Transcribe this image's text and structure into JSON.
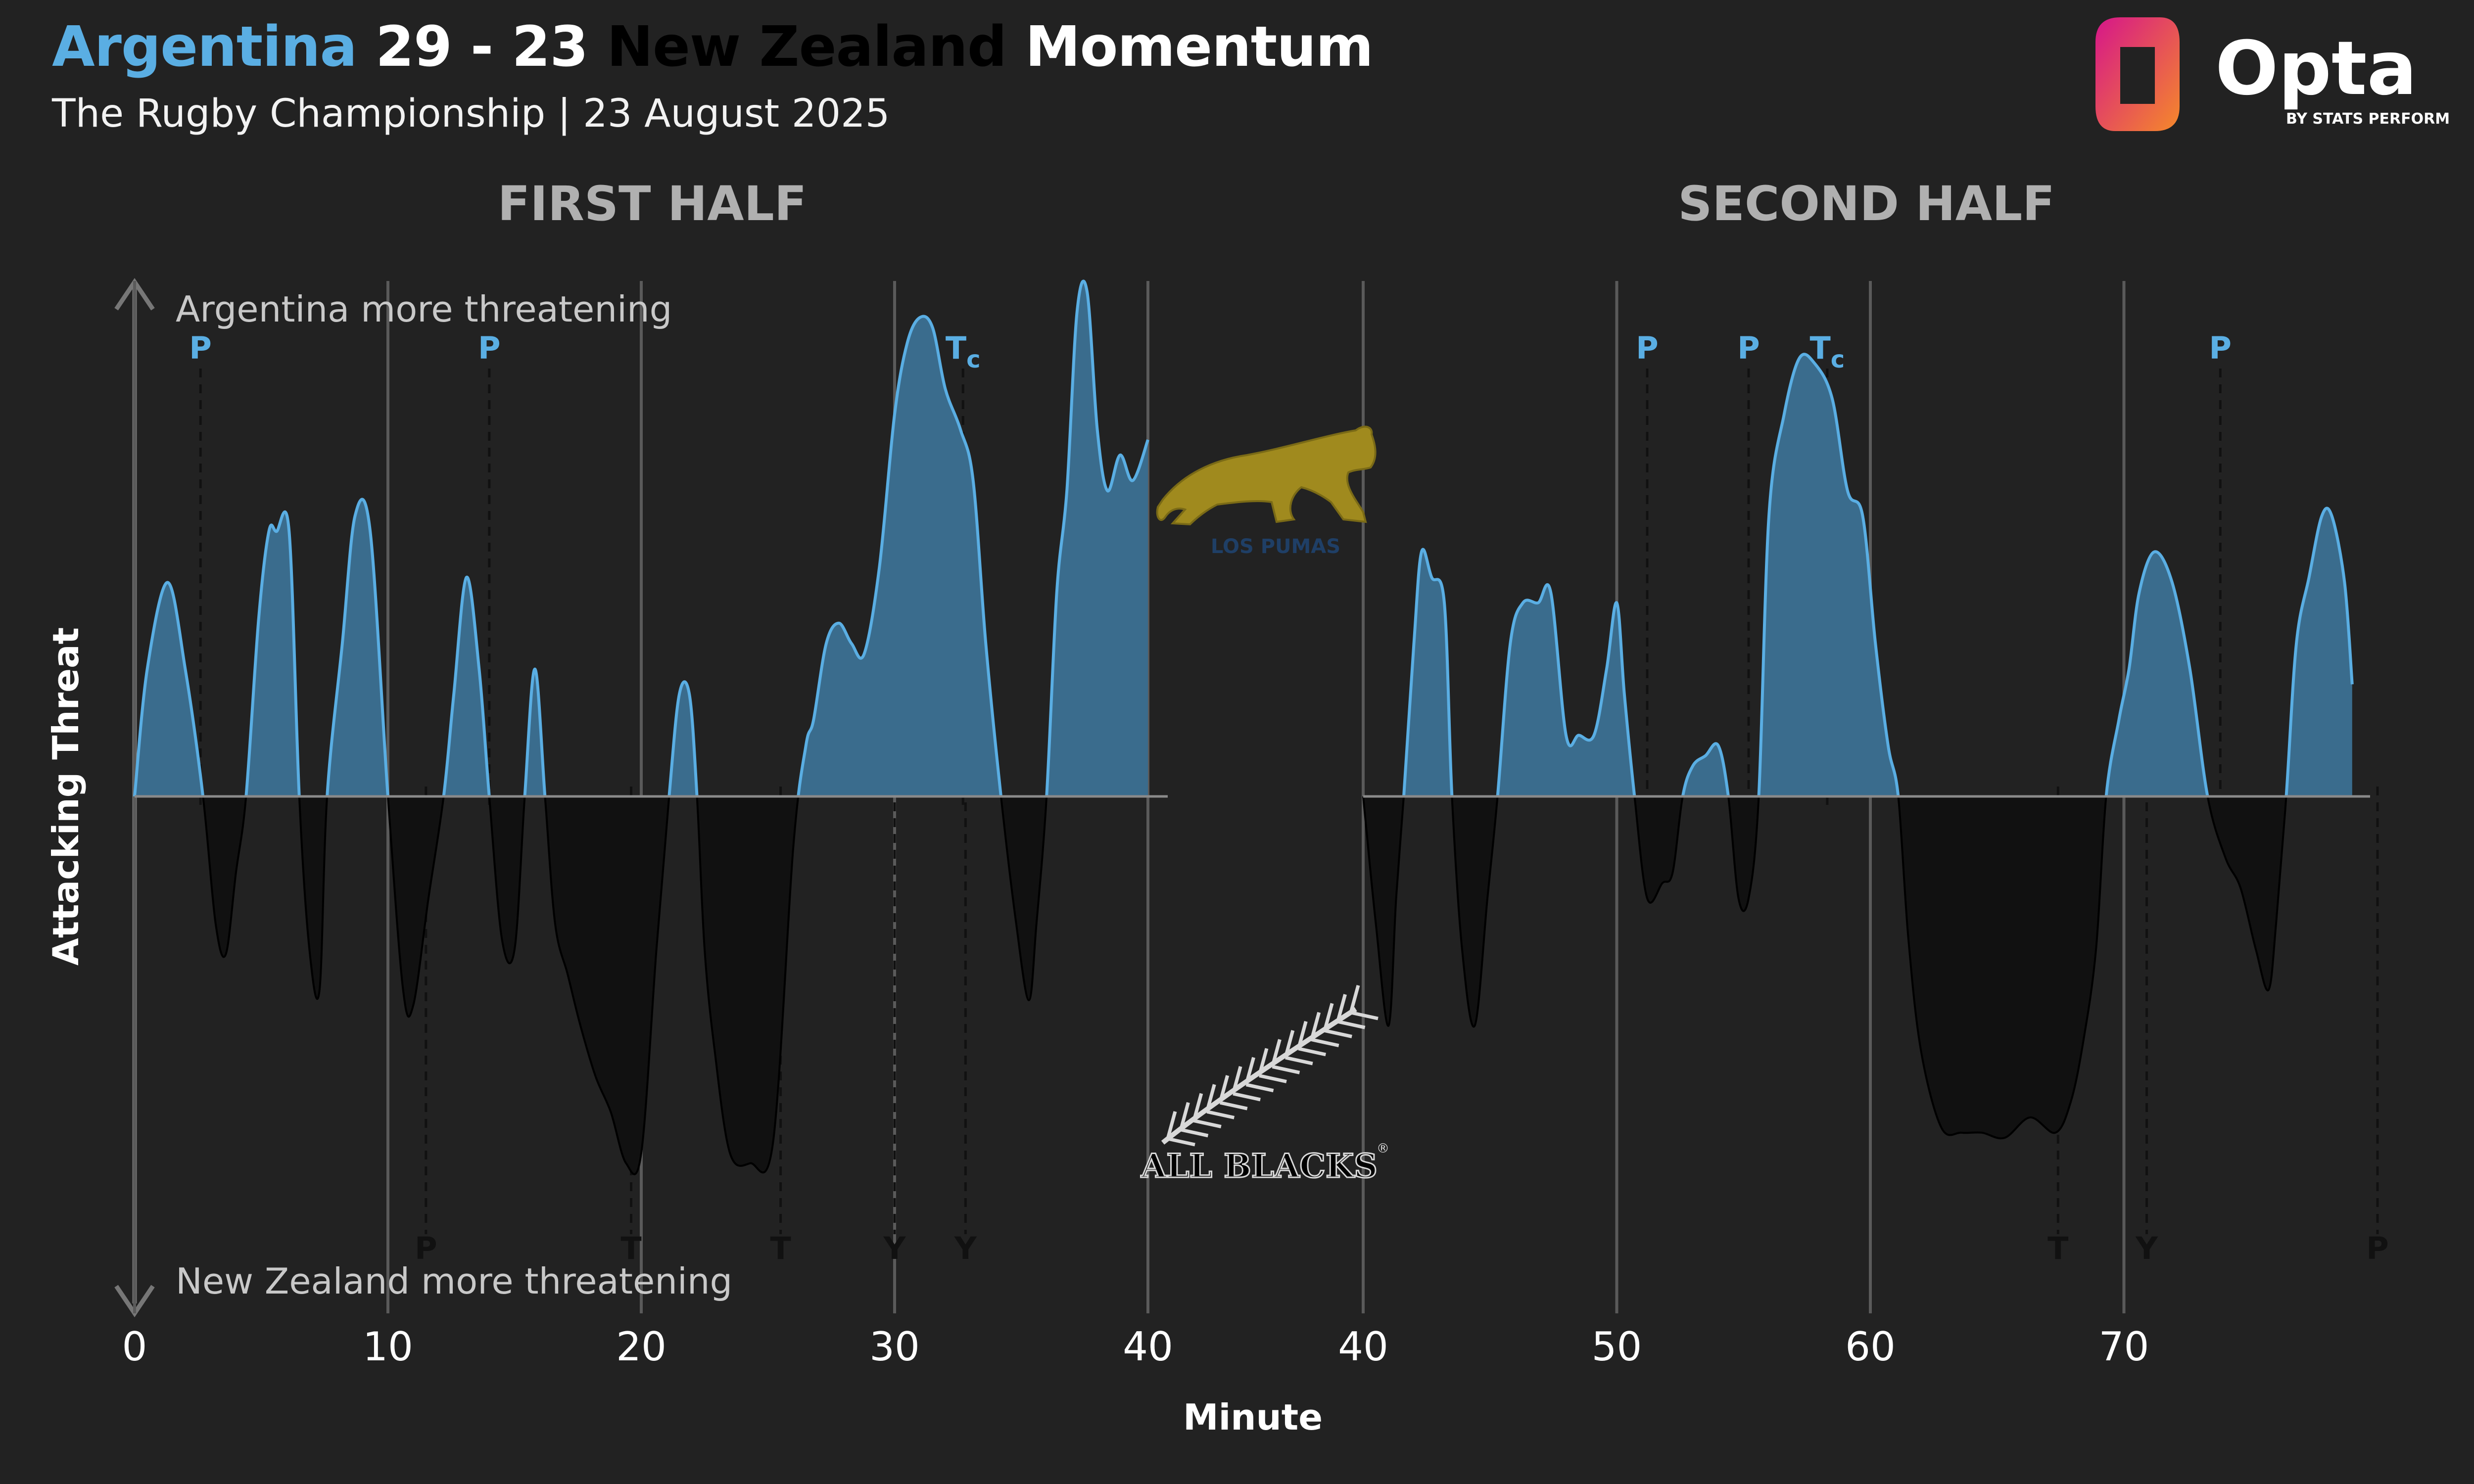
{
  "header": {
    "home_team": "Argentina",
    "score": "29 - 23",
    "away_team": "New Zealand",
    "suffix": "Momentum",
    "subtitle": "The Rugby Championship | 23 August 2025"
  },
  "brand": {
    "name": "Opta",
    "tagline": "BY STATS PERFORM"
  },
  "colors": {
    "background": "#222222",
    "argentina": "#5aaee3",
    "argentina_fill": "#3a6c8d",
    "new_zealand": "#111111",
    "grid": "#5a5a5a",
    "axis": "#777777",
    "logo_pink": "#d6168a",
    "logo_orange": "#f5892a"
  },
  "crests": {
    "argentina": {
      "icon": "puma-crest-icon",
      "color": "#a08a1e",
      "caption": "LOS PUMAS"
    },
    "new_zealand": {
      "icon": "silver-fern-icon",
      "text": "ALL BLACKS",
      "mark": "®"
    }
  },
  "chart_data": {
    "type": "area",
    "title": "Argentina 29 - 23 New Zealand Momentum",
    "ylabel": "Attacking Threat",
    "xlabel": "Minute",
    "ylim": [
      -1,
      1
    ],
    "top_annotation": "Argentina more threatening",
    "bottom_annotation": "New Zealand more threatening",
    "panels": [
      {
        "label": "FIRST HALF",
        "xlim": [
          0,
          40
        ],
        "x_ticks": [
          0,
          10,
          20,
          30,
          40
        ],
        "series": [
          {
            "x": [
              0,
              0.5,
              1.3,
              2.0,
              2.7,
              3.2,
              3.6,
              4.0,
              4.4,
              4.9,
              5.3,
              5.6,
              6.1,
              6.5,
              6.9,
              7.3,
              7.6,
              8.2,
              8.7,
              9.3,
              10.0,
              10.6,
              11.0,
              11.6,
              12.2,
              12.6,
              13.1,
              13.6,
              14.0,
              14.5,
              15.0,
              15.4,
              15.8,
              16.2,
              16.6,
              17.1,
              17.6,
              18.2,
              18.8,
              19.4,
              20.0,
              20.6,
              21.1,
              21.5,
              21.9,
              22.2,
              22.5,
              22.9,
              23.5,
              24.3,
              25.2,
              26.0,
              26.5,
              26.8,
              27.3,
              27.8,
              28.3,
              28.8,
              29.4,
              30.0,
              30.5,
              31.0,
              31.5,
              32.0,
              32.6,
              33.1,
              33.6,
              34.2,
              34.8,
              35.3,
              35.6,
              36.0,
              36.4,
              36.8,
              37.2,
              37.6,
              38.0,
              38.4,
              38.9,
              39.4,
              40.0
            ],
            "y": [
              0,
              0.25,
              0.42,
              0.25,
              0,
              -0.25,
              -0.31,
              -0.15,
              0,
              0.35,
              0.52,
              0.52,
              0.52,
              0,
              -0.3,
              -0.38,
              0,
              0.3,
              0.55,
              0.52,
              0,
              -0.38,
              -0.41,
              -0.2,
              0,
              0.2,
              0.43,
              0.25,
              0,
              -0.28,
              -0.3,
              0,
              0.25,
              0,
              -0.25,
              -0.35,
              -0.45,
              -0.55,
              -0.62,
              -0.72,
              -0.7,
              -0.3,
              0,
              0.2,
              0.2,
              0,
              -0.3,
              -0.5,
              -0.7,
              -0.72,
              -0.68,
              -0.1,
              0.1,
              0.15,
              0.3,
              0.34,
              0.3,
              0.28,
              0.45,
              0.75,
              0.89,
              0.94,
              0.92,
              0.8,
              0.72,
              0.62,
              0.3,
              0,
              -0.25,
              -0.4,
              -0.25,
              0,
              0.4,
              0.6,
              0.95,
              0.99,
              0.72,
              0.6,
              0.67,
              0.62,
              0.7
            ]
          }
        ],
        "argentina_events": [
          {
            "minute": 2.6,
            "label": "P"
          },
          {
            "minute": 14.0,
            "label": "P"
          },
          {
            "minute": 32.7,
            "label": "Tc"
          }
        ],
        "new_zealand_events": [
          {
            "minute": 11.5,
            "label": "P"
          },
          {
            "minute": 19.6,
            "label": "T"
          },
          {
            "minute": 25.5,
            "label": "T"
          },
          {
            "minute": 30.0,
            "label": "Y"
          },
          {
            "minute": 32.8,
            "label": "Y"
          }
        ]
      },
      {
        "label": "SECOND HALF",
        "xlim": [
          40,
          80
        ],
        "x_ticks": [
          40,
          50,
          60,
          70
        ],
        "series": [
          {
            "x": [
              40,
              40.5,
              41.0,
              41.3,
              41.6,
              42.0,
              42.3,
              42.7,
              43.2,
              43.5,
              43.9,
              44.4,
              44.9,
              45.3,
              45.8,
              46.3,
              46.9,
              47.4,
              48.0,
              48.5,
              49.1,
              49.6,
              50.0,
              50.3,
              50.7,
              51.2,
              51.8,
              52.2,
              52.6,
              53.0,
              53.5,
              54.0,
              54.4,
              54.8,
              55.2,
              55.6,
              56.0,
              56.6,
              57.2,
              57.8,
              58.5,
              59.1,
              59.7,
              60.2,
              60.7,
              61.1,
              61.5,
              62.0,
              62.8,
              63.6,
              64.4,
              65.3,
              66.3,
              67.3,
              67.9,
              68.4,
              68.9,
              69.3,
              69.8,
              70.2,
              70.6,
              71.2,
              71.9,
              72.6,
              73.3,
              74.0,
              74.6,
              75.2,
              75.7,
              76.0,
              76.4,
              76.8,
              77.3,
              77.8,
              78.2,
              78.7,
              79.0
            ],
            "y": [
              0,
              -0.25,
              -0.45,
              -0.2,
              0,
              0.3,
              0.48,
              0.43,
              0.38,
              0,
              -0.3,
              -0.45,
              -0.2,
              0,
              0.3,
              0.38,
              0.38,
              0.4,
              0.12,
              0.12,
              0.12,
              0.25,
              0.38,
              0.2,
              0,
              -0.2,
              -0.17,
              -0.15,
              0,
              0.06,
              0.08,
              0.1,
              0,
              -0.2,
              -0.2,
              0,
              0.55,
              0.75,
              0.86,
              0.85,
              0.78,
              0.6,
              0.55,
              0.3,
              0.1,
              0,
              -0.28,
              -0.5,
              -0.65,
              -0.66,
              -0.66,
              -0.67,
              -0.63,
              -0.66,
              -0.6,
              -0.48,
              -0.3,
              0,
              0.15,
              0.25,
              0.4,
              0.48,
              0.42,
              0.25,
              0,
              -0.12,
              -0.18,
              -0.3,
              -0.38,
              -0.25,
              0,
              0.3,
              0.43,
              0.55,
              0.55,
              0.42,
              0.22
            ]
          }
        ],
        "argentina_events": [
          {
            "minute": 51.2,
            "label": "P"
          },
          {
            "minute": 55.2,
            "label": "P"
          },
          {
            "minute": 58.3,
            "label": "Tc"
          },
          {
            "minute": 73.8,
            "label": "P"
          }
        ],
        "new_zealand_events": [
          {
            "minute": 67.4,
            "label": "T"
          },
          {
            "minute": 70.9,
            "label": "Y"
          },
          {
            "minute": 80.0,
            "label": "P"
          }
        ]
      }
    ]
  }
}
